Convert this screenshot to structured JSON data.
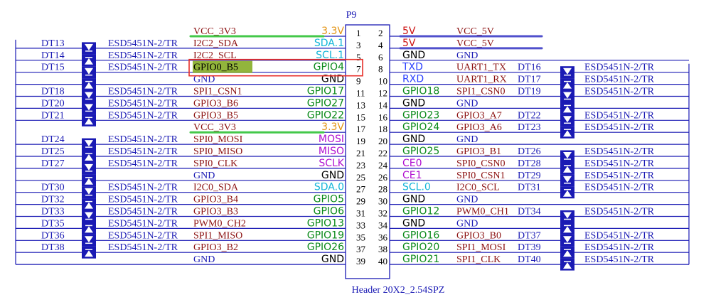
{
  "header": {
    "ref": "P9",
    "part": "Header 20X2_2.54SPZ"
  },
  "colors": {
    "wire": "#1a1ab4",
    "net_dark": "#8b1010",
    "func_green": "#0b8a1b",
    "supply_orange": "#e39415",
    "supply_red": "#cc1010",
    "spi_purple": "#b010d0",
    "i2c_cyan": "#12b5d8",
    "uart_blue": "#2a40ff",
    "highlight_box": "#e8302a",
    "highlight_fill": "#7fa81a",
    "green_bar": "#44c84a",
    "blue_bar": "#5050cc"
  },
  "rows": [
    {
      "pin_left": "1",
      "pin_right": "2",
      "lnet": "VCC_3V3",
      "lfunc": "3.3V",
      "lfunc_c": "orange",
      "ltvs": "",
      "lesd": "",
      "lv": "",
      "rfunc": "5V",
      "rfunc_c": "red",
      "rnet": "VCC_5V",
      "rtvs": "",
      "resd": "",
      "rv": ""
    },
    {
      "pin_left": "3",
      "pin_right": "4",
      "lnet": "I2C2_SDA",
      "lfunc": "SDA.1",
      "lfunc_c": "cyan",
      "ltvs": "DT13",
      "lesd": "ESD5451N-2/TR",
      "lv": "a",
      "rfunc": "5V",
      "rfunc_c": "red",
      "rnet": "VCC_5V",
      "rtvs": "",
      "resd": "",
      "rv": ""
    },
    {
      "pin_left": "5",
      "pin_right": "6",
      "lnet": "I2C2_SCL",
      "lfunc": "SCL.1",
      "lfunc_c": "cyan",
      "ltvs": "DT14",
      "lesd": "ESD5451N-2/TR",
      "lv": "b",
      "rfunc": "GND",
      "rfunc_c": "black",
      "rnet": "GND",
      "rtvs": "",
      "resd": "",
      "rv": ""
    },
    {
      "pin_left": "7",
      "pin_right": "8",
      "lnet": "GPIO0_B5",
      "lfunc": "GPIO4",
      "lfunc_c": "green",
      "ltvs": "DT15",
      "lesd": "ESD5451N-2/TR",
      "lv": "a",
      "rfunc": "TXD",
      "rfunc_c": "blue",
      "rnet": "UART1_TX",
      "rtvs": "DT16",
      "resd": "ESD5451N-2/TR",
      "rv": "a"
    },
    {
      "pin_left": "9",
      "pin_right": "10",
      "lnet": "GND",
      "lfunc": "GND",
      "lfunc_c": "black",
      "ltvs": "",
      "lesd": "",
      "lv": "b",
      "rfunc": "RXD",
      "rfunc_c": "blue",
      "rnet": "UART1_RX",
      "rtvs": "DT17",
      "resd": "ESD5451N-2/TR",
      "rv": "b"
    },
    {
      "pin_left": "11",
      "pin_right": "12",
      "lnet": "SPI1_CSN1",
      "lfunc": "GPIO17",
      "lfunc_c": "green",
      "ltvs": "DT18",
      "lesd": "ESD5451N-2/TR",
      "lv": "a",
      "rfunc": "GPIO18",
      "rfunc_c": "green",
      "rnet": "SPI1_CSN0",
      "rtvs": "DT19",
      "resd": "ESD5451N-2/TR",
      "rv": "a"
    },
    {
      "pin_left": "13",
      "pin_right": "14",
      "lnet": "GPIO3_B6",
      "lfunc": "GPIO27",
      "lfunc_c": "green",
      "ltvs": "DT20",
      "lesd": "ESD5451N-2/TR",
      "lv": "a",
      "rfunc": "GND",
      "rfunc_c": "black",
      "rnet": "GND",
      "rtvs": "",
      "resd": "",
      "rv": "b"
    },
    {
      "pin_left": "15",
      "pin_right": "16",
      "lnet": "GPIO3_B5",
      "lfunc": "GPIO22",
      "lfunc_c": "green",
      "ltvs": "DT21",
      "lesd": "ESD5451N-2/TR",
      "lv": "b",
      "rfunc": "GPIO23",
      "rfunc_c": "green",
      "rnet": "GPIO3_A7",
      "rtvs": "DT22",
      "resd": "ESD5451N-2/TR",
      "rv": "a"
    },
    {
      "pin_left": "17",
      "pin_right": "18",
      "lnet": "VCC_3V3",
      "lfunc": "3.3V",
      "lfunc_c": "orange",
      "ltvs": "",
      "lesd": "",
      "lv": "",
      "rfunc": "GPIO24",
      "rfunc_c": "green",
      "rnet": "GPIO3_A6",
      "rtvs": "DT23",
      "resd": "ESD5451N-2/TR",
      "rv": "b"
    },
    {
      "pin_left": "19",
      "pin_right": "20",
      "lnet": "SPI0_MOSI",
      "lfunc": "MOSI",
      "lfunc_c": "purple",
      "ltvs": "DT24",
      "lesd": "ESD5451N-2/TR",
      "lv": "a",
      "rfunc": "GND",
      "rfunc_c": "black",
      "rnet": "GND",
      "rtvs": "",
      "resd": "",
      "rv": ""
    },
    {
      "pin_left": "21",
      "pin_right": "22",
      "lnet": "SPI0_MISO",
      "lfunc": "MISO",
      "lfunc_c": "purple",
      "ltvs": "DT25",
      "lesd": "ESD5451N-2/TR",
      "lv": "b",
      "rfunc": "GPIO25",
      "rfunc_c": "green",
      "rnet": "GPIO3_B1",
      "rtvs": "DT26",
      "resd": "ESD5451N-2/TR",
      "rv": "a"
    },
    {
      "pin_left": "23",
      "pin_right": "24",
      "lnet": "SPI0_CLK",
      "lfunc": "SCLK",
      "lfunc_c": "purple",
      "ltvs": "DT27",
      "lesd": "ESD5451N-2/TR",
      "lv": "a",
      "rfunc": "CE0",
      "rfunc_c": "purple",
      "rnet": "SPI0_CSN0",
      "rtvs": "DT28",
      "resd": "ESD5451N-2/TR",
      "rv": "b"
    },
    {
      "pin_left": "25",
      "pin_right": "26",
      "lnet": "GND",
      "lfunc": "GND",
      "lfunc_c": "black",
      "ltvs": "",
      "lesd": "",
      "lv": "b",
      "rfunc": "CE1",
      "rfunc_c": "purple",
      "rnet": "SPI0_CSN1",
      "rtvs": "DT29",
      "resd": "ESD5451N-2/TR",
      "rv": "a"
    },
    {
      "pin_left": "27",
      "pin_right": "28",
      "lnet": "I2C0_SDA",
      "lfunc": "SDA.0",
      "lfunc_c": "cyan",
      "ltvs": "DT30",
      "lesd": "ESD5451N-2/TR",
      "lv": "a",
      "rfunc": "SCL.0",
      "rfunc_c": "cyan",
      "rnet": "I2C0_SCL",
      "rtvs": "DT31",
      "resd": "ESD5451N-2/TR",
      "rv": "b"
    },
    {
      "pin_left": "29",
      "pin_right": "30",
      "lnet": "GPIO3_B4",
      "lfunc": "GPIO5",
      "lfunc_c": "green",
      "ltvs": "DT32",
      "lesd": "ESD5451N-2/TR",
      "lv": "b",
      "rfunc": "GND",
      "rfunc_c": "black",
      "rnet": "GND",
      "rtvs": "",
      "resd": "",
      "rv": ""
    },
    {
      "pin_left": "31",
      "pin_right": "32",
      "lnet": "GPIO3_B3",
      "lfunc": "GPIO6",
      "lfunc_c": "green",
      "ltvs": "DT33",
      "lesd": "ESD5451N-2/TR",
      "lv": "a",
      "rfunc": "GPIO12",
      "rfunc_c": "green",
      "rnet": "PWM0_CH1",
      "rtvs": "DT34",
      "resd": "ESD5451N-2/TR",
      "rv": "a"
    },
    {
      "pin_left": "33",
      "pin_right": "34",
      "lnet": "PWM0_CH2",
      "lfunc": "GPIO13",
      "lfunc_c": "green",
      "ltvs": "DT35",
      "lesd": "ESD5451N-2/TR",
      "lv": "b",
      "rfunc": "GND",
      "rfunc_c": "black",
      "rnet": "GND",
      "rtvs": "",
      "resd": "",
      "rv": "b"
    },
    {
      "pin_left": "35",
      "pin_right": "36",
      "lnet": "SPI1_MISO",
      "lfunc": "GPIO19",
      "lfunc_c": "green",
      "ltvs": "DT36",
      "lesd": "ESD5451N-2/TR",
      "lv": "a",
      "rfunc": "GPIO16",
      "rfunc_c": "green",
      "rnet": "GPIO3_B0",
      "rtvs": "DT37",
      "resd": "ESD5451N-2/TR",
      "rv": "a"
    },
    {
      "pin_left": "37",
      "pin_right": "38",
      "lnet": "GPIO3_B2",
      "lfunc": "GPIO26",
      "lfunc_c": "green",
      "ltvs": "DT38",
      "lesd": "ESD5451N-2/TR",
      "lv": "b",
      "rfunc": "GPIO20",
      "rfunc_c": "green",
      "rnet": "SPI1_MOSI",
      "rtvs": "DT39",
      "resd": "ESD5451N-2/TR",
      "rv": "b"
    },
    {
      "pin_left": "39",
      "pin_right": "40",
      "lnet": "GND",
      "lfunc": "GND",
      "lfunc_c": "black",
      "ltvs": "",
      "lesd": "",
      "lv": "",
      "rfunc": "GPIO21",
      "rfunc_c": "green",
      "rnet": "SPI1_CLK",
      "rtvs": "DT40",
      "resd": "ESD5451N-2/TR",
      "rv": "b"
    }
  ]
}
